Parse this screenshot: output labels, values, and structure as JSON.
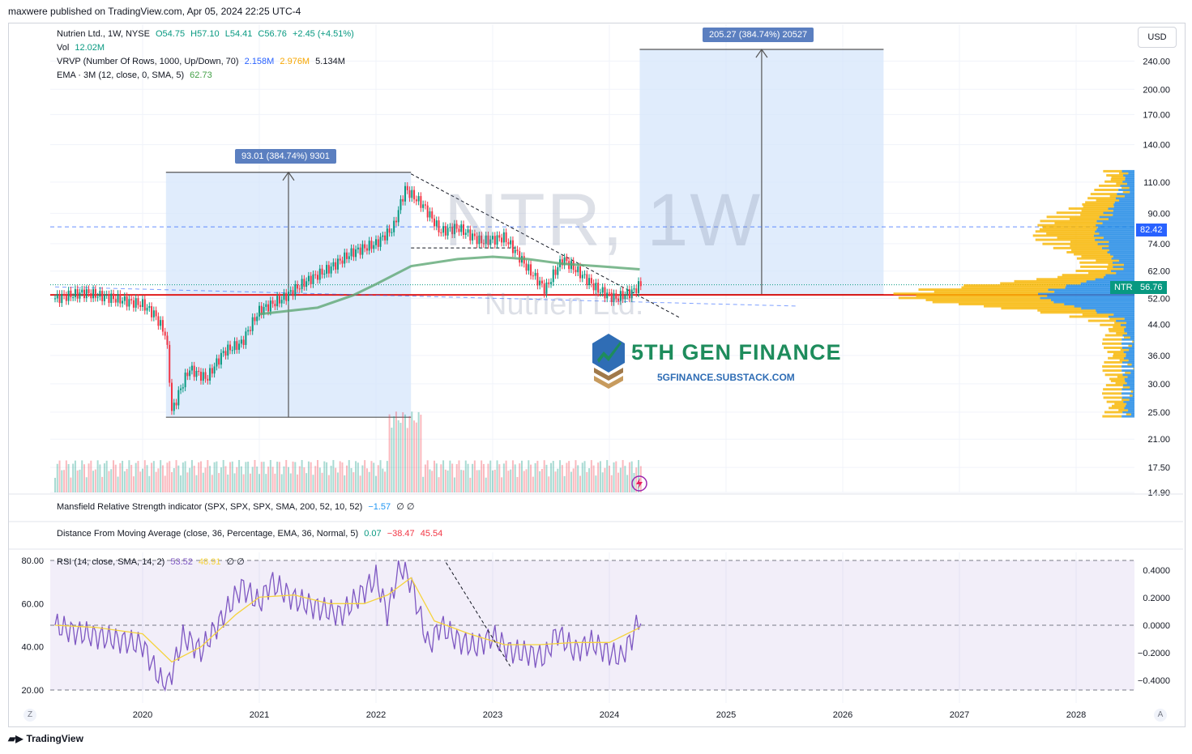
{
  "header": {
    "published": "maxwere published on TradingView.com, Apr 05, 2024 22:25 UTC-4"
  },
  "legend": {
    "symbol_line_name": "Nutrien Ltd., 1W, NYSE",
    "o_val": "O54.75",
    "h_val": "H57.10",
    "l_val": "L54.41",
    "c_val": "C56.76",
    "change": "+2.45 (+4.51%)",
    "vol_name": "Vol",
    "vol_val": "12.02M",
    "vrvp_name": "VRVP (Number Of Rows, 1000, Up/Down, 70)",
    "vrvp_up": "2.158M",
    "vrvp_down": "2.976M",
    "vrvp_total": "5.134M",
    "ema_name": "EMA · 3M (12, close, 0, SMA, 5)",
    "ema_val": "62.73",
    "mansfield_name": "Mansfield Relative Strength indicator (SPX, SPX, SPX, SMA, 200, 52, 10, 52)",
    "mansfield_val": "−1.57",
    "mansfield_extra": "∅ ∅",
    "dfma_name": "Distance From Moving Average (close, 36, Percentage, EMA, 36, Normal, 5)",
    "dfma_v1": "0.07",
    "dfma_v2": "−38.47",
    "dfma_v3": "45.54",
    "rsi_name": "RSI (14, close, SMA, 14, 2)",
    "rsi_v1": "53.52",
    "rsi_v2": "48.91",
    "rsi_extra": "∅ ∅"
  },
  "measure_left": "93.01 (384.74%) 9301",
  "measure_right": "205.27 (384.74%) 20527",
  "currency": "USD",
  "last_price": {
    "ticker": "NTR",
    "value": "56.76",
    "level": "82.42"
  },
  "watermark": {
    "title": "NTR, 1W",
    "subtitle": "Nutrien Ltd."
  },
  "overlay_brand": {
    "name": "5TH GEN FINANCE",
    "url": "5GFINANCE.SUBSTACK.COM"
  },
  "footer": {
    "brand": "TradingView",
    "corner_left": "Z",
    "corner_right": "A"
  },
  "colors": {
    "up": "#089981",
    "down": "#f23645",
    "ema": "#5ea774",
    "box": "#d6e6fb",
    "vrvp_up": "#1e88e5",
    "vrvp_down": "#f7b500",
    "rsi": "#7e57c2",
    "rsi_ma": "#f5d33d"
  },
  "chart_data": [
    {
      "type": "candlestick",
      "title": "Nutrien Ltd., 1W, NYSE",
      "y_scale": "log",
      "x_ticks": [
        "2020",
        "2021",
        "2022",
        "2023",
        "2024",
        "2025",
        "2026",
        "2027",
        "2028"
      ],
      "y_ticks": [
        "240.00",
        "200.00",
        "170.00",
        "140.00",
        "110.00",
        "90.00",
        "74.00",
        "62.00",
        "52.00",
        "44.00",
        "36.00",
        "30.00",
        "25.00",
        "21.00",
        "17.50",
        "14.90"
      ],
      "close_path": {
        "x": [
          2019.25,
          2019.5,
          2019.75,
          2020.0,
          2020.1,
          2020.2,
          2020.25,
          2020.4,
          2020.55,
          2020.7,
          2020.85,
          2021.0,
          2021.2,
          2021.4,
          2021.6,
          2021.8,
          2022.0,
          2022.15,
          2022.25,
          2022.4,
          2022.55,
          2022.7,
          2022.9,
          2023.1,
          2023.3,
          2023.45,
          2023.6,
          2023.75,
          2023.9,
          2024.05,
          2024.2,
          2024.26
        ],
        "y": [
          52,
          54,
          52,
          50,
          47,
          41,
          25,
          33,
          31,
          37,
          39,
          48,
          52,
          58,
          63,
          70,
          74,
          82,
          105,
          95,
          80,
          82,
          75,
          77,
          63,
          55,
          67,
          61,
          55,
          52,
          54.3,
          56.76
        ]
      },
      "ema_3m": {
        "x": [
          2021.0,
          2021.5,
          2021.8,
          2022.0,
          2022.3,
          2022.7,
          2023.0,
          2023.3,
          2023.6,
          2023.9,
          2024.26
        ],
        "y": [
          47,
          49,
          53,
          57,
          64,
          67,
          68,
          67,
          65,
          64,
          62.73
        ]
      },
      "measure_left": {
        "from_price": 24.18,
        "to_price": 117.19,
        "x_from": 2020.2,
        "x_to": 2022.3,
        "label": "93.01 (384.74%) 9301"
      },
      "measure_right": {
        "from_price": 53.35,
        "to_price": 258.62,
        "x_from": 2024.26,
        "x_to": 2026.35,
        "label": "205.27 (384.74%) 20527"
      },
      "horizontal_levels": [
        82.42,
        53.2,
        72.0
      ],
      "last_close": 56.76
    },
    {
      "type": "line",
      "title": "RSI (14, close, SMA, 14, 2)",
      "ylim": [
        20,
        80
      ],
      "y_ticks_left": [
        "80.00",
        "60.00",
        "40.00",
        "20.00"
      ],
      "y_ticks_right": [
        "0.4000",
        "0.2000",
        "0.0000",
        "−0.2000",
        "−0.4000"
      ],
      "series": [
        {
          "name": "RSI",
          "x": [
            2019.25,
            2019.4,
            2019.6,
            2019.8,
            2020.0,
            2020.1,
            2020.2,
            2020.35,
            2020.5,
            2020.7,
            2020.85,
            2021.0,
            2021.1,
            2021.3,
            2021.5,
            2021.7,
            2021.9,
            2022.0,
            2022.1,
            2022.2,
            2022.3,
            2022.45,
            2022.55,
            2022.7,
            2022.85,
            2023.0,
            2023.15,
            2023.3,
            2023.45,
            2023.55,
            2023.7,
            2023.85,
            2024.0,
            2024.1,
            2024.2,
            2024.26
          ],
          "y": [
            50,
            47,
            45,
            43,
            41,
            30,
            20,
            45,
            38,
            55,
            68,
            60,
            70,
            62,
            58,
            55,
            66,
            72,
            55,
            78,
            70,
            40,
            50,
            43,
            40,
            45,
            38,
            37,
            35,
            47,
            38,
            42,
            37,
            35,
            45,
            53.52
          ]
        },
        {
          "name": "RSI-based MA",
          "x": [
            2019.25,
            2019.6,
            2020.0,
            2020.25,
            2020.5,
            2020.8,
            2021.0,
            2021.3,
            2021.6,
            2021.9,
            2022.1,
            2022.3,
            2022.5,
            2022.8,
            2023.1,
            2023.4,
            2023.7,
            2024.0,
            2024.26
          ],
          "y": [
            50,
            49,
            46,
            33,
            40,
            55,
            63,
            64,
            60,
            60,
            64,
            72,
            52,
            46,
            41,
            41,
            42,
            42,
            48.91
          ]
        }
      ]
    }
  ]
}
